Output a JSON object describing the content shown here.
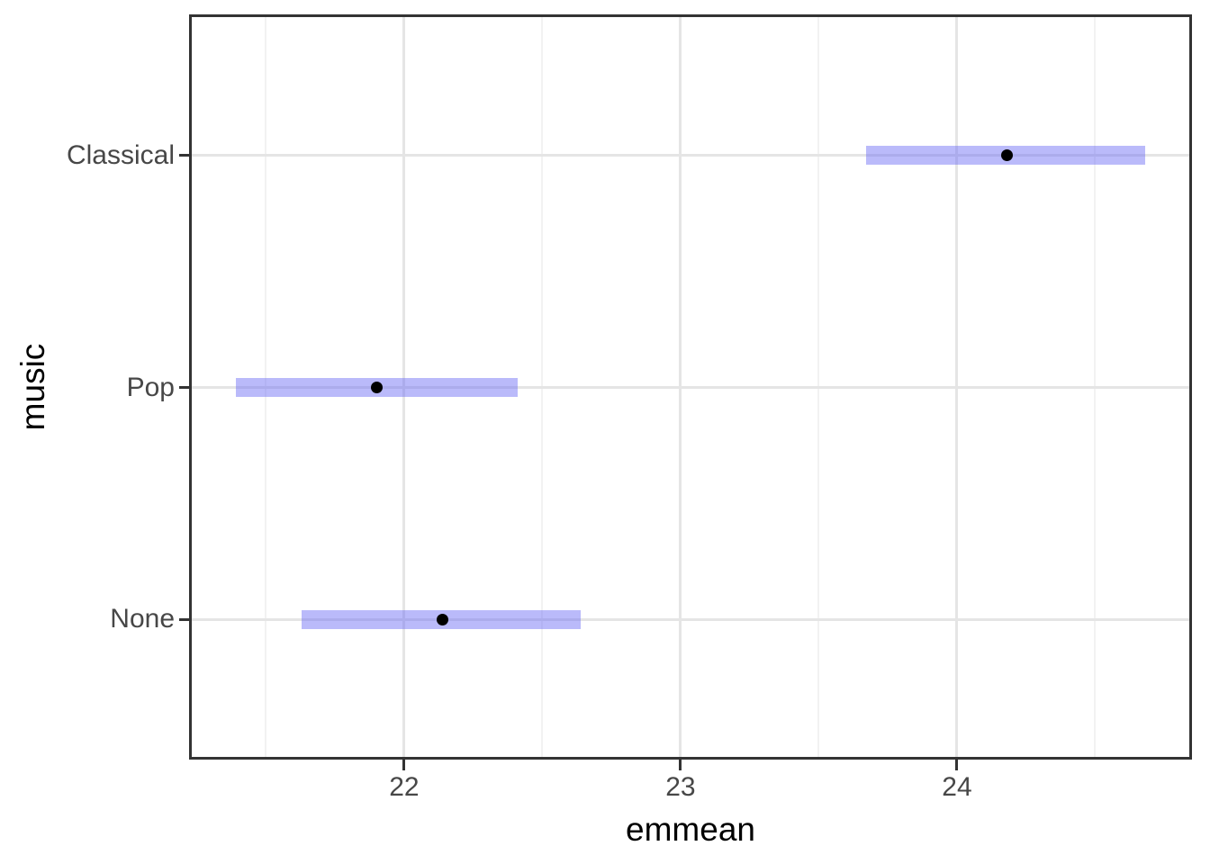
{
  "chart_data": {
    "type": "scatter",
    "subtype": "horizontal-point-estimates-with-confidence-interval-bars",
    "title": "",
    "xlabel": "emmean",
    "ylabel": "music",
    "categories": [
      "Classical",
      "Pop",
      "None"
    ],
    "points": [
      {
        "category": "Classical",
        "emmean": 24.18,
        "ci_lower": 23.67,
        "ci_upper": 24.68
      },
      {
        "category": "Pop",
        "emmean": 21.9,
        "ci_lower": 21.39,
        "ci_upper": 22.41
      },
      {
        "category": "None",
        "emmean": 22.14,
        "ci_lower": 21.63,
        "ci_upper": 22.64
      }
    ],
    "xlim": [
      21.225,
      24.847
    ],
    "x_major_ticks": [
      22,
      23,
      24
    ],
    "x_major_tick_labels": [
      "22",
      "23",
      "24"
    ],
    "x_minor_gridlines": [
      21.5,
      22.5,
      23.5,
      24.5
    ],
    "grid": "on",
    "legend": "none",
    "colors": {
      "ci_bar": "rgba(102,102,245,0.45)",
      "point": "#000000",
      "panel_border": "#333333",
      "tick_mark": "#333333",
      "grid_major": "#e5e5e5",
      "grid_minor": "#f2f2f2",
      "axis_text": "#474747",
      "axis_title": "#000000",
      "background": "#ffffff"
    }
  }
}
